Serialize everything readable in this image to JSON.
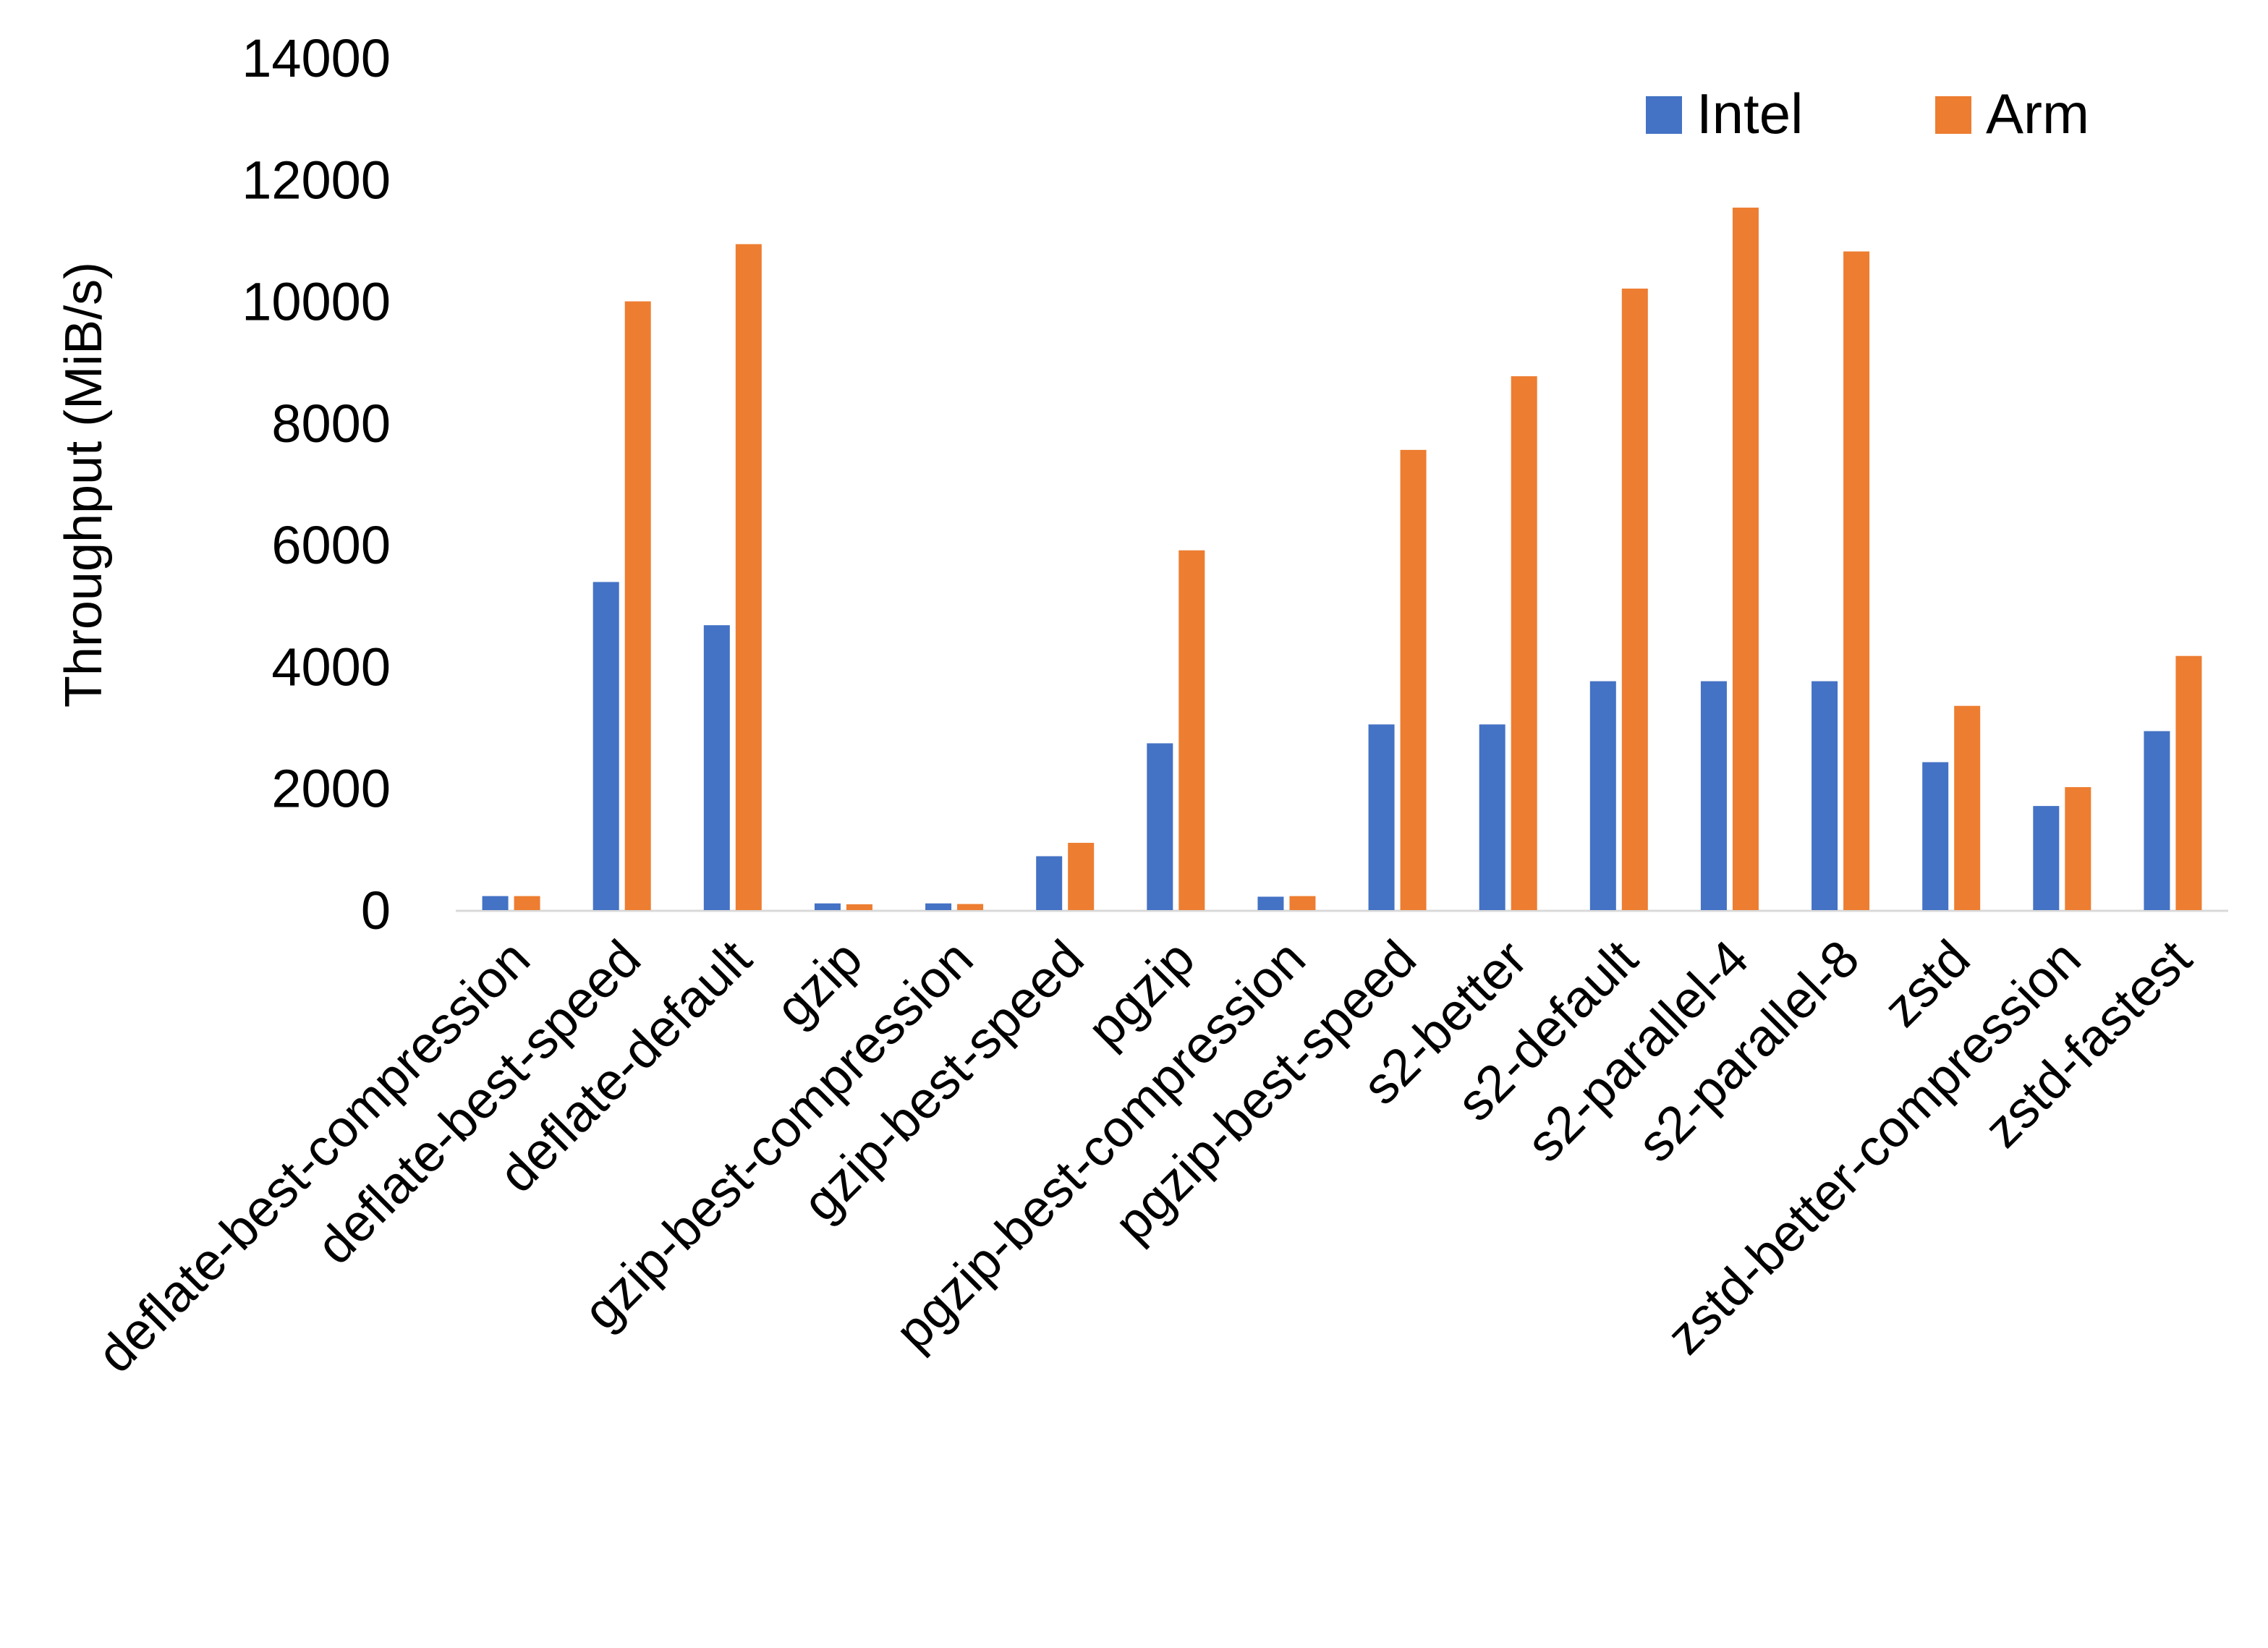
{
  "chart_data": {
    "type": "bar",
    "title": "",
    "xlabel": "",
    "ylabel": "Throughput (MiB/s)",
    "ylim": [
      0,
      14000
    ],
    "yticks": [
      0,
      2000,
      4000,
      6000,
      8000,
      10000,
      12000,
      14000
    ],
    "grid": false,
    "legend_position": "top-right",
    "categories": [
      "deflate-best-compression",
      "deflate-best-speed",
      "deflate-default",
      "gzip",
      "gzip-best-compression",
      "gzip-best-speed",
      "pgzip",
      "pgzip-best-compression",
      "pgzip-best-speed",
      "s2-better",
      "s2-default",
      "s2-parallel-4",
      "s2-parallel-8",
      "zstd",
      "zstd-better-compression",
      "zstd-fastest"
    ],
    "series": [
      {
        "name": "Intel",
        "color": "#4472C4",
        "values": [
          230,
          5390,
          4680,
          110,
          110,
          885,
          2740,
          220,
          3050,
          3050,
          3760,
          3760,
          3760,
          2430,
          1710,
          2940
        ]
      },
      {
        "name": "Arm",
        "color": "#ED7D31",
        "values": [
          230,
          10000,
          10940,
          95,
          100,
          1105,
          5910,
          230,
          7560,
          8770,
          10210,
          11540,
          10820,
          3355,
          2020,
          4175
        ]
      }
    ]
  }
}
